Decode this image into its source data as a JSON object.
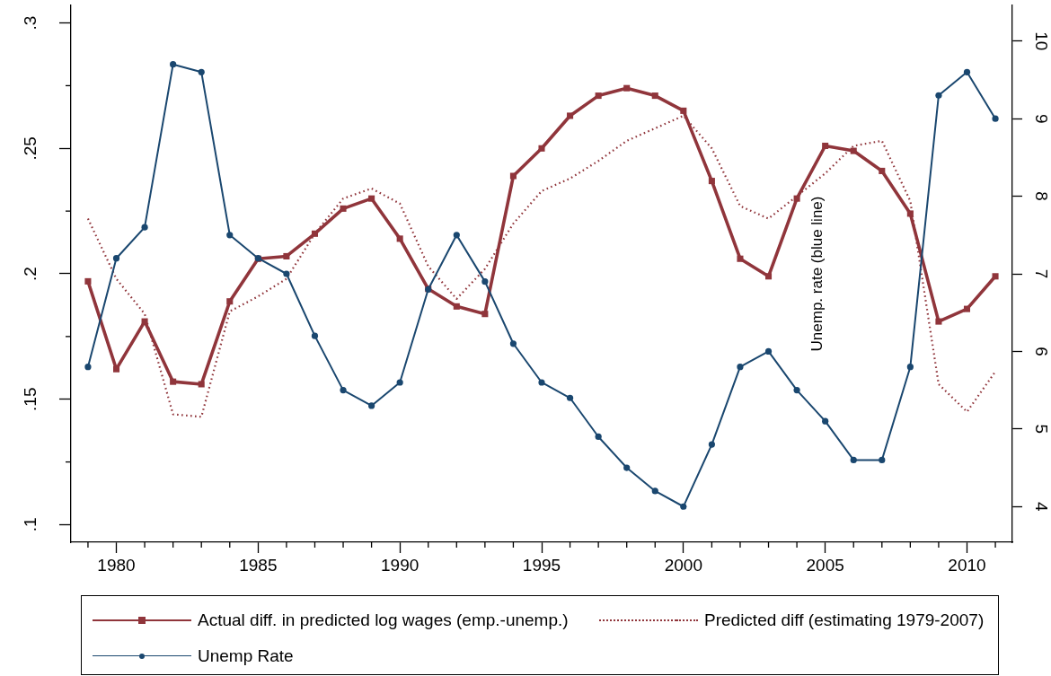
{
  "chart_data": {
    "type": "line",
    "x": [
      1979,
      1980,
      1981,
      1982,
      1983,
      1984,
      1985,
      1986,
      1987,
      1988,
      1989,
      1990,
      1991,
      1992,
      1993,
      1994,
      1995,
      1996,
      1997,
      1998,
      1999,
      2000,
      2001,
      2002,
      2003,
      2004,
      2005,
      2006,
      2007,
      2008,
      2009,
      2010,
      2011
    ],
    "series": [
      {
        "name": "Actual diff. in predicted log wages (emp.-unemp.)",
        "color": "#90353b",
        "marker": "square",
        "line_style": "solid",
        "values": [
          0.197,
          0.162,
          0.181,
          0.157,
          0.156,
          0.189,
          0.206,
          0.207,
          0.216,
          0.226,
          0.23,
          0.214,
          0.194,
          0.187,
          0.184,
          0.239,
          0.25,
          0.263,
          0.271,
          0.274,
          0.271,
          0.265,
          0.237,
          0.206,
          0.199,
          0.23,
          0.251,
          0.249,
          0.241,
          0.224,
          0.181,
          0.186,
          0.199
        ]
      },
      {
        "name": "Predicted diff (estimating 1979-2007)",
        "color": "#90353b",
        "marker": "none",
        "line_style": "dotted",
        "values": [
          0.222,
          0.198,
          0.184,
          0.144,
          0.143,
          0.185,
          0.191,
          0.198,
          0.216,
          0.23,
          0.234,
          0.228,
          0.203,
          0.19,
          0.202,
          0.22,
          0.233,
          0.238,
          0.245,
          0.253,
          0.258,
          0.263,
          0.25,
          0.227,
          0.222,
          0.231,
          0.24,
          0.251,
          0.253,
          0.229,
          0.156,
          0.145,
          0.161
        ]
      },
      {
        "name": "Unemp Rate",
        "color": "#1a476f",
        "marker": "circle",
        "line_style": "solid",
        "axis": "y2",
        "values": [
          5.8,
          7.2,
          7.6,
          9.7,
          9.6,
          7.5,
          7.2,
          7.0,
          6.2,
          5.5,
          5.3,
          5.6,
          6.8,
          7.5,
          6.9,
          6.1,
          5.6,
          5.4,
          4.9,
          4.5,
          4.2,
          4.0,
          4.8,
          5.8,
          6.0,
          5.5,
          5.1,
          4.6,
          4.6,
          5.8,
          9.3,
          9.6,
          9.0
        ]
      }
    ],
    "xlim": [
      1978.4,
      2011.6
    ],
    "xticks": [
      {
        "value": 1979,
        "label": null
      },
      1980,
      {
        "value": 1981,
        "label": null
      },
      {
        "value": 1982,
        "label": null
      },
      {
        "value": 1983,
        "label": null
      },
      {
        "value": 1984,
        "label": null
      },
      1985,
      {
        "value": 1986,
        "label": null
      },
      {
        "value": 1987,
        "label": null
      },
      {
        "value": 1988,
        "label": null
      },
      {
        "value": 1989,
        "label": null
      },
      1990,
      {
        "value": 1991,
        "label": null
      },
      {
        "value": 1992,
        "label": null
      },
      {
        "value": 1993,
        "label": null
      },
      {
        "value": 1994,
        "label": null
      },
      1995,
      {
        "value": 1996,
        "label": null
      },
      {
        "value": 1997,
        "label": null
      },
      {
        "value": 1998,
        "label": null
      },
      {
        "value": 1999,
        "label": null
      },
      2000,
      {
        "value": 2001,
        "label": null
      },
      {
        "value": 2002,
        "label": null
      },
      {
        "value": 2003,
        "label": null
      },
      {
        "value": 2004,
        "label": null
      },
      2005,
      {
        "value": 2006,
        "label": null
      },
      {
        "value": 2007,
        "label": null
      },
      {
        "value": 2008,
        "label": null
      },
      {
        "value": 2009,
        "label": null
      },
      2010,
      {
        "value": 2011,
        "label": null
      }
    ],
    "ylim": [
      0.093,
      0.307
    ],
    "yticks": [
      {
        "value": 0.1,
        "label": ".1"
      },
      {
        "value": 0.125,
        "label": null
      },
      {
        "value": 0.15,
        "label": ".15"
      },
      {
        "value": 0.175,
        "label": null
      },
      {
        "value": 0.2,
        "label": ".2"
      },
      {
        "value": 0.225,
        "label": null
      },
      {
        "value": 0.25,
        "label": ".25"
      },
      {
        "value": 0.275,
        "label": null
      },
      {
        "value": 0.3,
        "label": ".3"
      }
    ],
    "y2lim": [
      3.54,
      10.46
    ],
    "y2ticks": [
      4,
      5,
      6,
      7,
      8,
      9,
      10
    ],
    "y2label": "Unemp. rate (blue line)",
    "legend": "bottom"
  }
}
